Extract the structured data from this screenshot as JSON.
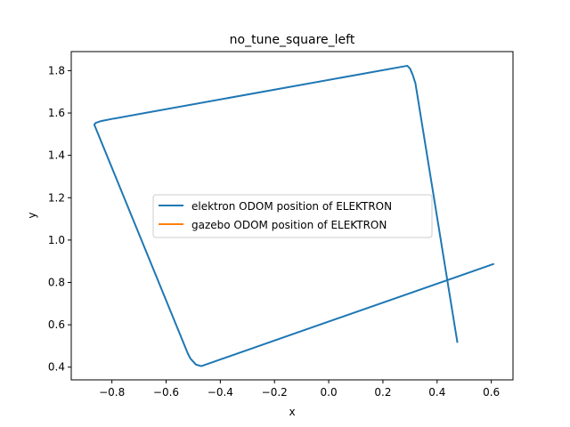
{
  "chart_data": {
    "type": "line",
    "title": "no_tune_square_left",
    "xlabel": "x",
    "ylabel": "y",
    "xlim": [
      -0.95,
      0.68
    ],
    "ylim": [
      0.34,
      1.89
    ],
    "xticks": [
      -0.8,
      -0.6,
      -0.4,
      -0.2,
      0.0,
      0.2,
      0.4,
      0.6
    ],
    "xtick_labels": [
      "−0.8",
      "−0.6",
      "−0.4",
      "−0.2",
      "0.0",
      "0.2",
      "0.4",
      "0.6"
    ],
    "yticks": [
      0.4,
      0.6,
      0.8,
      1.0,
      1.2,
      1.4,
      1.6,
      1.8
    ],
    "ytick_labels": [
      "0.4",
      "0.6",
      "0.8",
      "1.0",
      "1.2",
      "1.4",
      "1.6",
      "1.8"
    ],
    "grid": false,
    "legend_position": "center",
    "series": [
      {
        "name": "elektron ODOM position of ELEKTRON",
        "color": "#1f77b4",
        "x": [
          0.61,
          -0.47,
          -0.49,
          -0.51,
          -0.52,
          -0.865,
          -0.86,
          -0.84,
          -0.8,
          0.29,
          0.3,
          0.31,
          0.32,
          0.475
        ],
        "y": [
          0.888,
          0.405,
          0.412,
          0.44,
          0.465,
          1.545,
          1.553,
          1.562,
          1.572,
          1.823,
          1.81,
          1.78,
          1.74,
          0.515
        ]
      },
      {
        "name": "gazebo ODOM position of ELEKTRON",
        "color": "#ff7f0e",
        "x": [],
        "y": []
      }
    ]
  }
}
